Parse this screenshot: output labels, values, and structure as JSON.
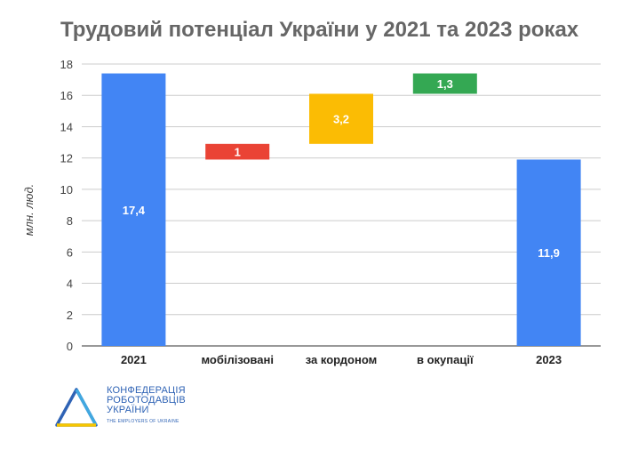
{
  "title": "Трудовий потенціал України у 2021 та 2023 роках",
  "chart_data": {
    "type": "waterfall",
    "title": "Трудовий потенціал України у 2021 та 2023 роках",
    "ylabel": "млн. люд.",
    "ylim": [
      0,
      18
    ],
    "yticks": [
      0,
      2,
      4,
      6,
      8,
      10,
      12,
      14,
      16,
      18
    ],
    "grid": true,
    "categories": [
      "2021",
      "мобілізовані",
      "за кордоном",
      "в окупації",
      "2023"
    ],
    "bars": [
      {
        "category": "2021",
        "start": 0,
        "end": 17.4,
        "label": "17,4",
        "color": "#4285f4"
      },
      {
        "category": "мобілізовані",
        "start": 11.9,
        "end": 12.9,
        "label": "1",
        "color": "#ea4335"
      },
      {
        "category": "за кордоном",
        "start": 12.9,
        "end": 16.1,
        "label": "3,2",
        "color": "#fbbc04"
      },
      {
        "category": "в окупації",
        "start": 16.1,
        "end": 17.4,
        "label": "1,3",
        "color": "#34a853"
      },
      {
        "category": "2023",
        "start": 0,
        "end": 11.9,
        "label": "11,9",
        "color": "#4285f4"
      }
    ]
  },
  "logo": {
    "lines": [
      "КОНФЕДЕРАЦІЯ",
      "РОБОТОДАВЦІВ",
      "УКРАЇНИ"
    ],
    "subline": "THE EMPLOYERS OF UKRAINE"
  }
}
